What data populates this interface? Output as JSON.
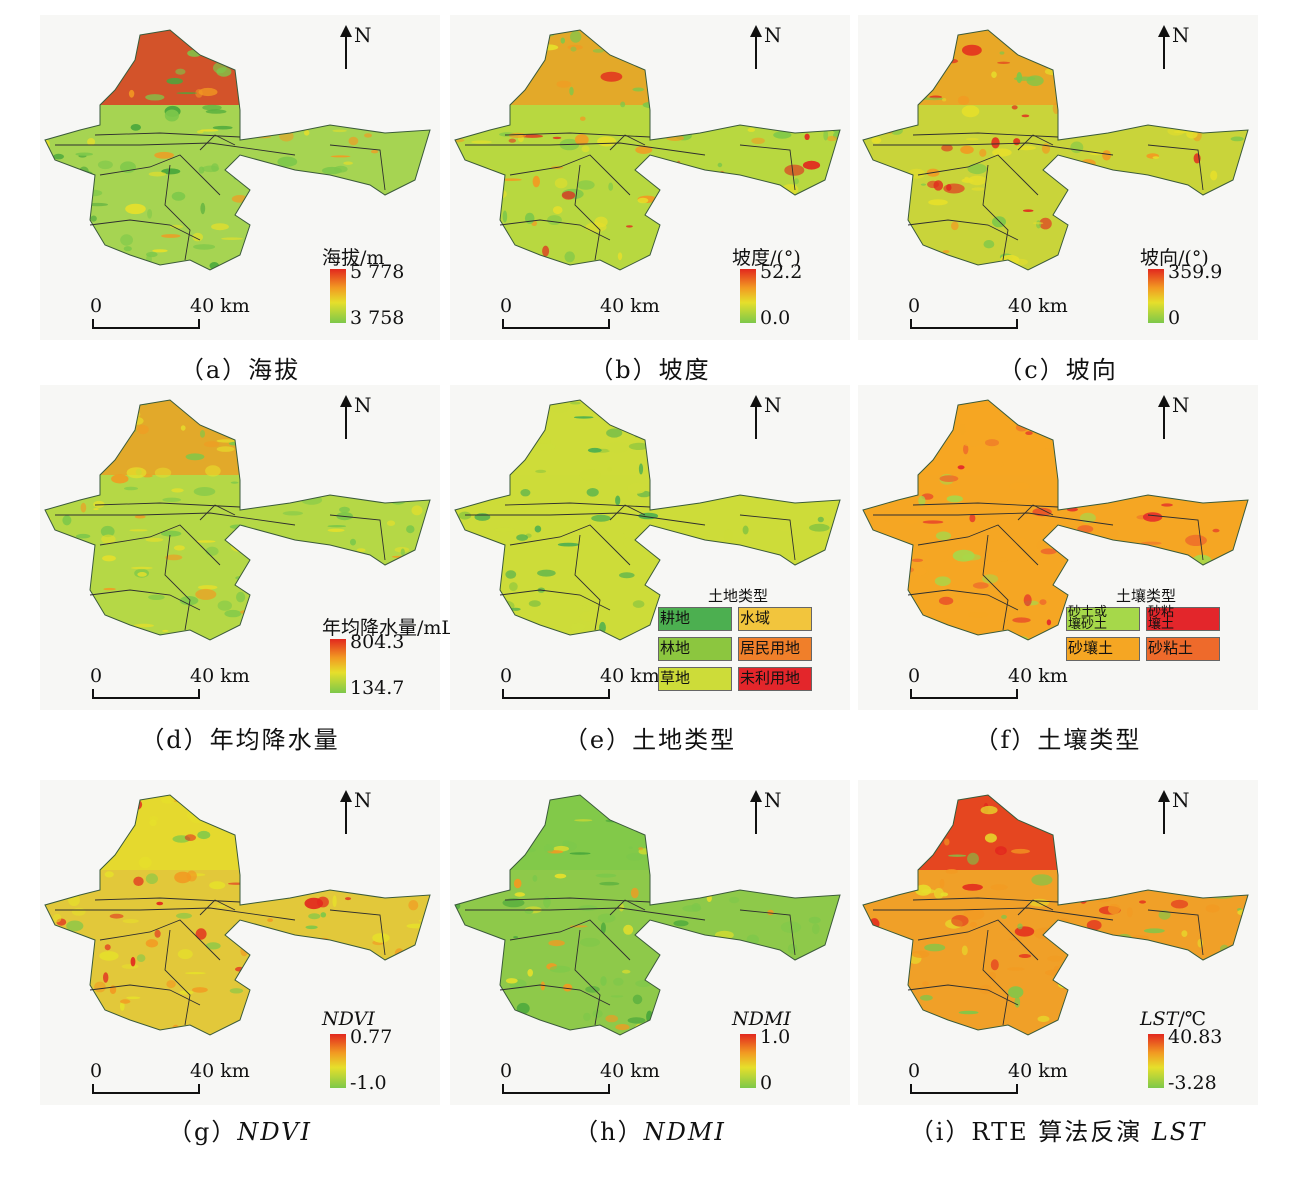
{
  "north_label": "N",
  "scale": {
    "zero": "0",
    "dist": "40 km"
  },
  "panels": [
    {
      "id": "a",
      "caption": "（a）海拔",
      "legend_title": "海拔/m",
      "hi": "5 778",
      "lo": "3 758",
      "style": "elevation"
    },
    {
      "id": "b",
      "caption": "（b）坡度",
      "legend_title": "坡度/(°)",
      "hi": "52.2",
      "lo": "0.0",
      "style": "slope"
    },
    {
      "id": "c",
      "caption": "（c）坡向",
      "legend_title": "坡向/(°)",
      "hi": "359.9",
      "lo": "0",
      "style": "aspect"
    },
    {
      "id": "d",
      "caption": "（d）年均降水量",
      "legend_title": "年均降水量/mL",
      "hi": "804.3",
      "lo": "134.7",
      "style": "precip"
    },
    {
      "id": "e",
      "caption": "（e）土地类型",
      "legend_title": "土地类型",
      "style": "land"
    },
    {
      "id": "f",
      "caption": "（f）土壤类型",
      "legend_title": "土壤类型",
      "style": "soil"
    },
    {
      "id": "g",
      "caption_prefix": "（g）",
      "caption_italic": "NDVI",
      "legend_title": "NDVI",
      "hi": "0.77",
      "lo": "-1.0",
      "style": "ndvi"
    },
    {
      "id": "h",
      "caption_prefix": "（h）",
      "caption_italic": "NDMI",
      "legend_title": "NDMI",
      "hi": "1.0",
      "lo": "0",
      "style": "ndmi"
    },
    {
      "id": "i",
      "caption_prefix": "（i）RTE 算法反演 ",
      "caption_italic": "LST",
      "legend_title_italic": "LST",
      "legend_title_unit": "/℃",
      "hi": "40.83",
      "lo": "-3.28",
      "style": "lst"
    }
  ],
  "land_legend": [
    {
      "label": "耕地",
      "color": "#4caf50"
    },
    {
      "label": "水域",
      "color": "#f2c53d"
    },
    {
      "label": "林地",
      "color": "#8cc63f"
    },
    {
      "label": "居民用地",
      "color": "#f07f2a"
    },
    {
      "label": "草地",
      "color": "#cddc39"
    },
    {
      "label": "未利用地",
      "color": "#e3262b"
    }
  ],
  "soil_legend": [
    {
      "label": "砂土或\n壤砂土",
      "color": "#a6d84a"
    },
    {
      "label": "砂粘\n壤土",
      "color": "#e3262b"
    },
    {
      "label": "砂壤土",
      "color": "#f5a623"
    },
    {
      "label": "砂粘土",
      "color": "#ee6a2b"
    }
  ],
  "palette": {
    "red": "#e2281e",
    "orange": "#f29a22",
    "yellow": "#e6df2b",
    "green": "#7dc84a",
    "dark_green": "#4aa83c"
  }
}
